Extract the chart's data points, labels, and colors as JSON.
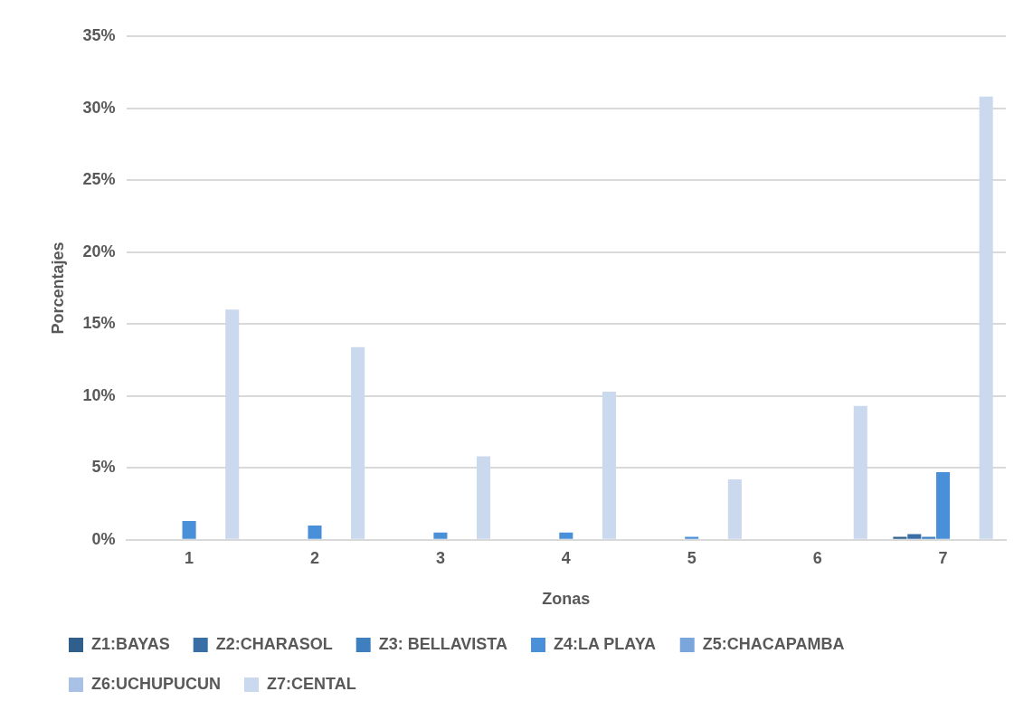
{
  "chart_data": {
    "type": "bar",
    "xlabel": "Zonas",
    "ylabel": "Porcentajes",
    "categories": [
      "1",
      "2",
      "3",
      "4",
      "5",
      "6",
      "7"
    ],
    "series": [
      {
        "name": "Z1:BAYAS",
        "color": "#2f5f8a",
        "values": [
          0,
          0,
          0,
          0,
          0,
          0,
          0.2
        ]
      },
      {
        "name": "Z2:CHARASOL",
        "color": "#3a6fa6",
        "values": [
          0,
          0,
          0,
          0,
          0,
          0,
          0.4
        ]
      },
      {
        "name": "Z3: BELLAVISTA",
        "color": "#3f7fc0",
        "values": [
          0,
          0,
          0,
          0,
          0,
          0,
          0.2
        ]
      },
      {
        "name": "Z4:LA PLAYA",
        "color": "#4a90d9",
        "values": [
          1.3,
          1.0,
          0.5,
          0.5,
          0.2,
          0,
          4.7
        ]
      },
      {
        "name": "Z5:CHACAPAMBA",
        "color": "#7aa6dc",
        "values": [
          0,
          0,
          0,
          0,
          0,
          0,
          0
        ]
      },
      {
        "name": "Z6:UCHUPUCUN",
        "color": "#a9c1e4",
        "values": [
          0,
          0,
          0,
          0,
          0,
          0,
          0
        ]
      },
      {
        "name": "Z7:CENTAL",
        "color": "#cbd9ef",
        "values": [
          16,
          13.4,
          5.8,
          10.3,
          4.2,
          9.3,
          30.8
        ]
      }
    ],
    "ylim": [
      0,
      35
    ],
    "yticks": [
      {
        "value": 0,
        "label": "0%"
      },
      {
        "value": 5,
        "label": "5%"
      },
      {
        "value": 10,
        "label": "10%"
      },
      {
        "value": 15,
        "label": "15%"
      },
      {
        "value": 20,
        "label": "20%"
      },
      {
        "value": 25,
        "label": "25%"
      },
      {
        "value": 30,
        "label": "30%"
      },
      {
        "value": 35,
        "label": "35%"
      }
    ],
    "grid": "y",
    "legend": "bottom"
  }
}
